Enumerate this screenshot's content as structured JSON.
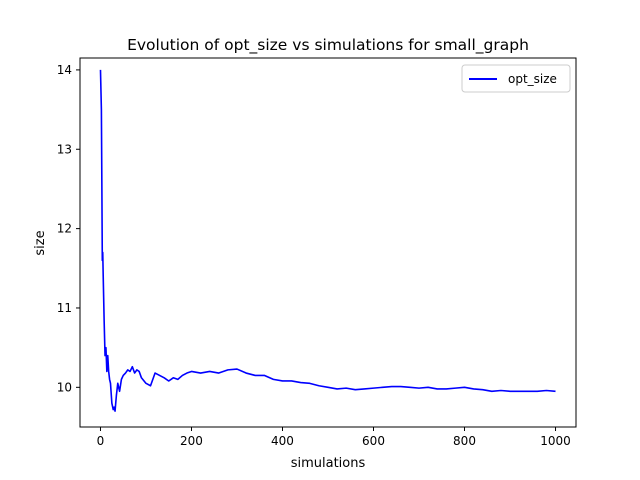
{
  "chart_data": {
    "type": "line",
    "title": "Evolution of opt_size vs simulations for small_graph",
    "xlabel": "simulations",
    "ylabel": "size",
    "xlim": [
      -45,
      1045
    ],
    "ylim": [
      9.5,
      14.15
    ],
    "xticks": [
      0,
      200,
      400,
      600,
      800,
      1000
    ],
    "yticks": [
      10,
      11,
      12,
      13,
      14
    ],
    "grid": false,
    "legend_position": "top-right",
    "colors": {
      "series": "#0000ff",
      "axes": "#000000"
    },
    "series": [
      {
        "name": "opt_size",
        "x": [
          0,
          2,
          3,
          4,
          5,
          6,
          8,
          10,
          12,
          14,
          16,
          18,
          20,
          22,
          25,
          28,
          30,
          32,
          35,
          38,
          42,
          46,
          50,
          55,
          60,
          65,
          70,
          75,
          80,
          85,
          90,
          100,
          110,
          120,
          130,
          140,
          150,
          160,
          170,
          180,
          190,
          200,
          220,
          240,
          260,
          280,
          300,
          320,
          340,
          360,
          380,
          400,
          420,
          440,
          460,
          480,
          500,
          520,
          540,
          560,
          580,
          600,
          620,
          640,
          660,
          680,
          700,
          720,
          740,
          760,
          780,
          800,
          820,
          840,
          860,
          880,
          900,
          920,
          940,
          960,
          980,
          1000
        ],
        "y": [
          14.0,
          13.5,
          12.6,
          11.6,
          11.7,
          11.4,
          10.85,
          10.4,
          10.5,
          10.2,
          10.4,
          10.2,
          10.1,
          10.05,
          9.8,
          9.72,
          9.75,
          9.7,
          9.9,
          10.05,
          9.95,
          10.1,
          10.15,
          10.18,
          10.22,
          10.2,
          10.26,
          10.18,
          10.22,
          10.2,
          10.12,
          10.05,
          10.02,
          10.18,
          10.15,
          10.12,
          10.08,
          10.12,
          10.1,
          10.15,
          10.18,
          10.2,
          10.18,
          10.2,
          10.18,
          10.22,
          10.23,
          10.18,
          10.15,
          10.15,
          10.1,
          10.08,
          10.08,
          10.06,
          10.05,
          10.02,
          10.0,
          9.98,
          9.99,
          9.97,
          9.98,
          9.99,
          10.0,
          10.01,
          10.01,
          10.0,
          9.99,
          10.0,
          9.98,
          9.98,
          9.99,
          10.0,
          9.98,
          9.97,
          9.95,
          9.96,
          9.95,
          9.95,
          9.95,
          9.95,
          9.96,
          9.95
        ]
      }
    ]
  }
}
